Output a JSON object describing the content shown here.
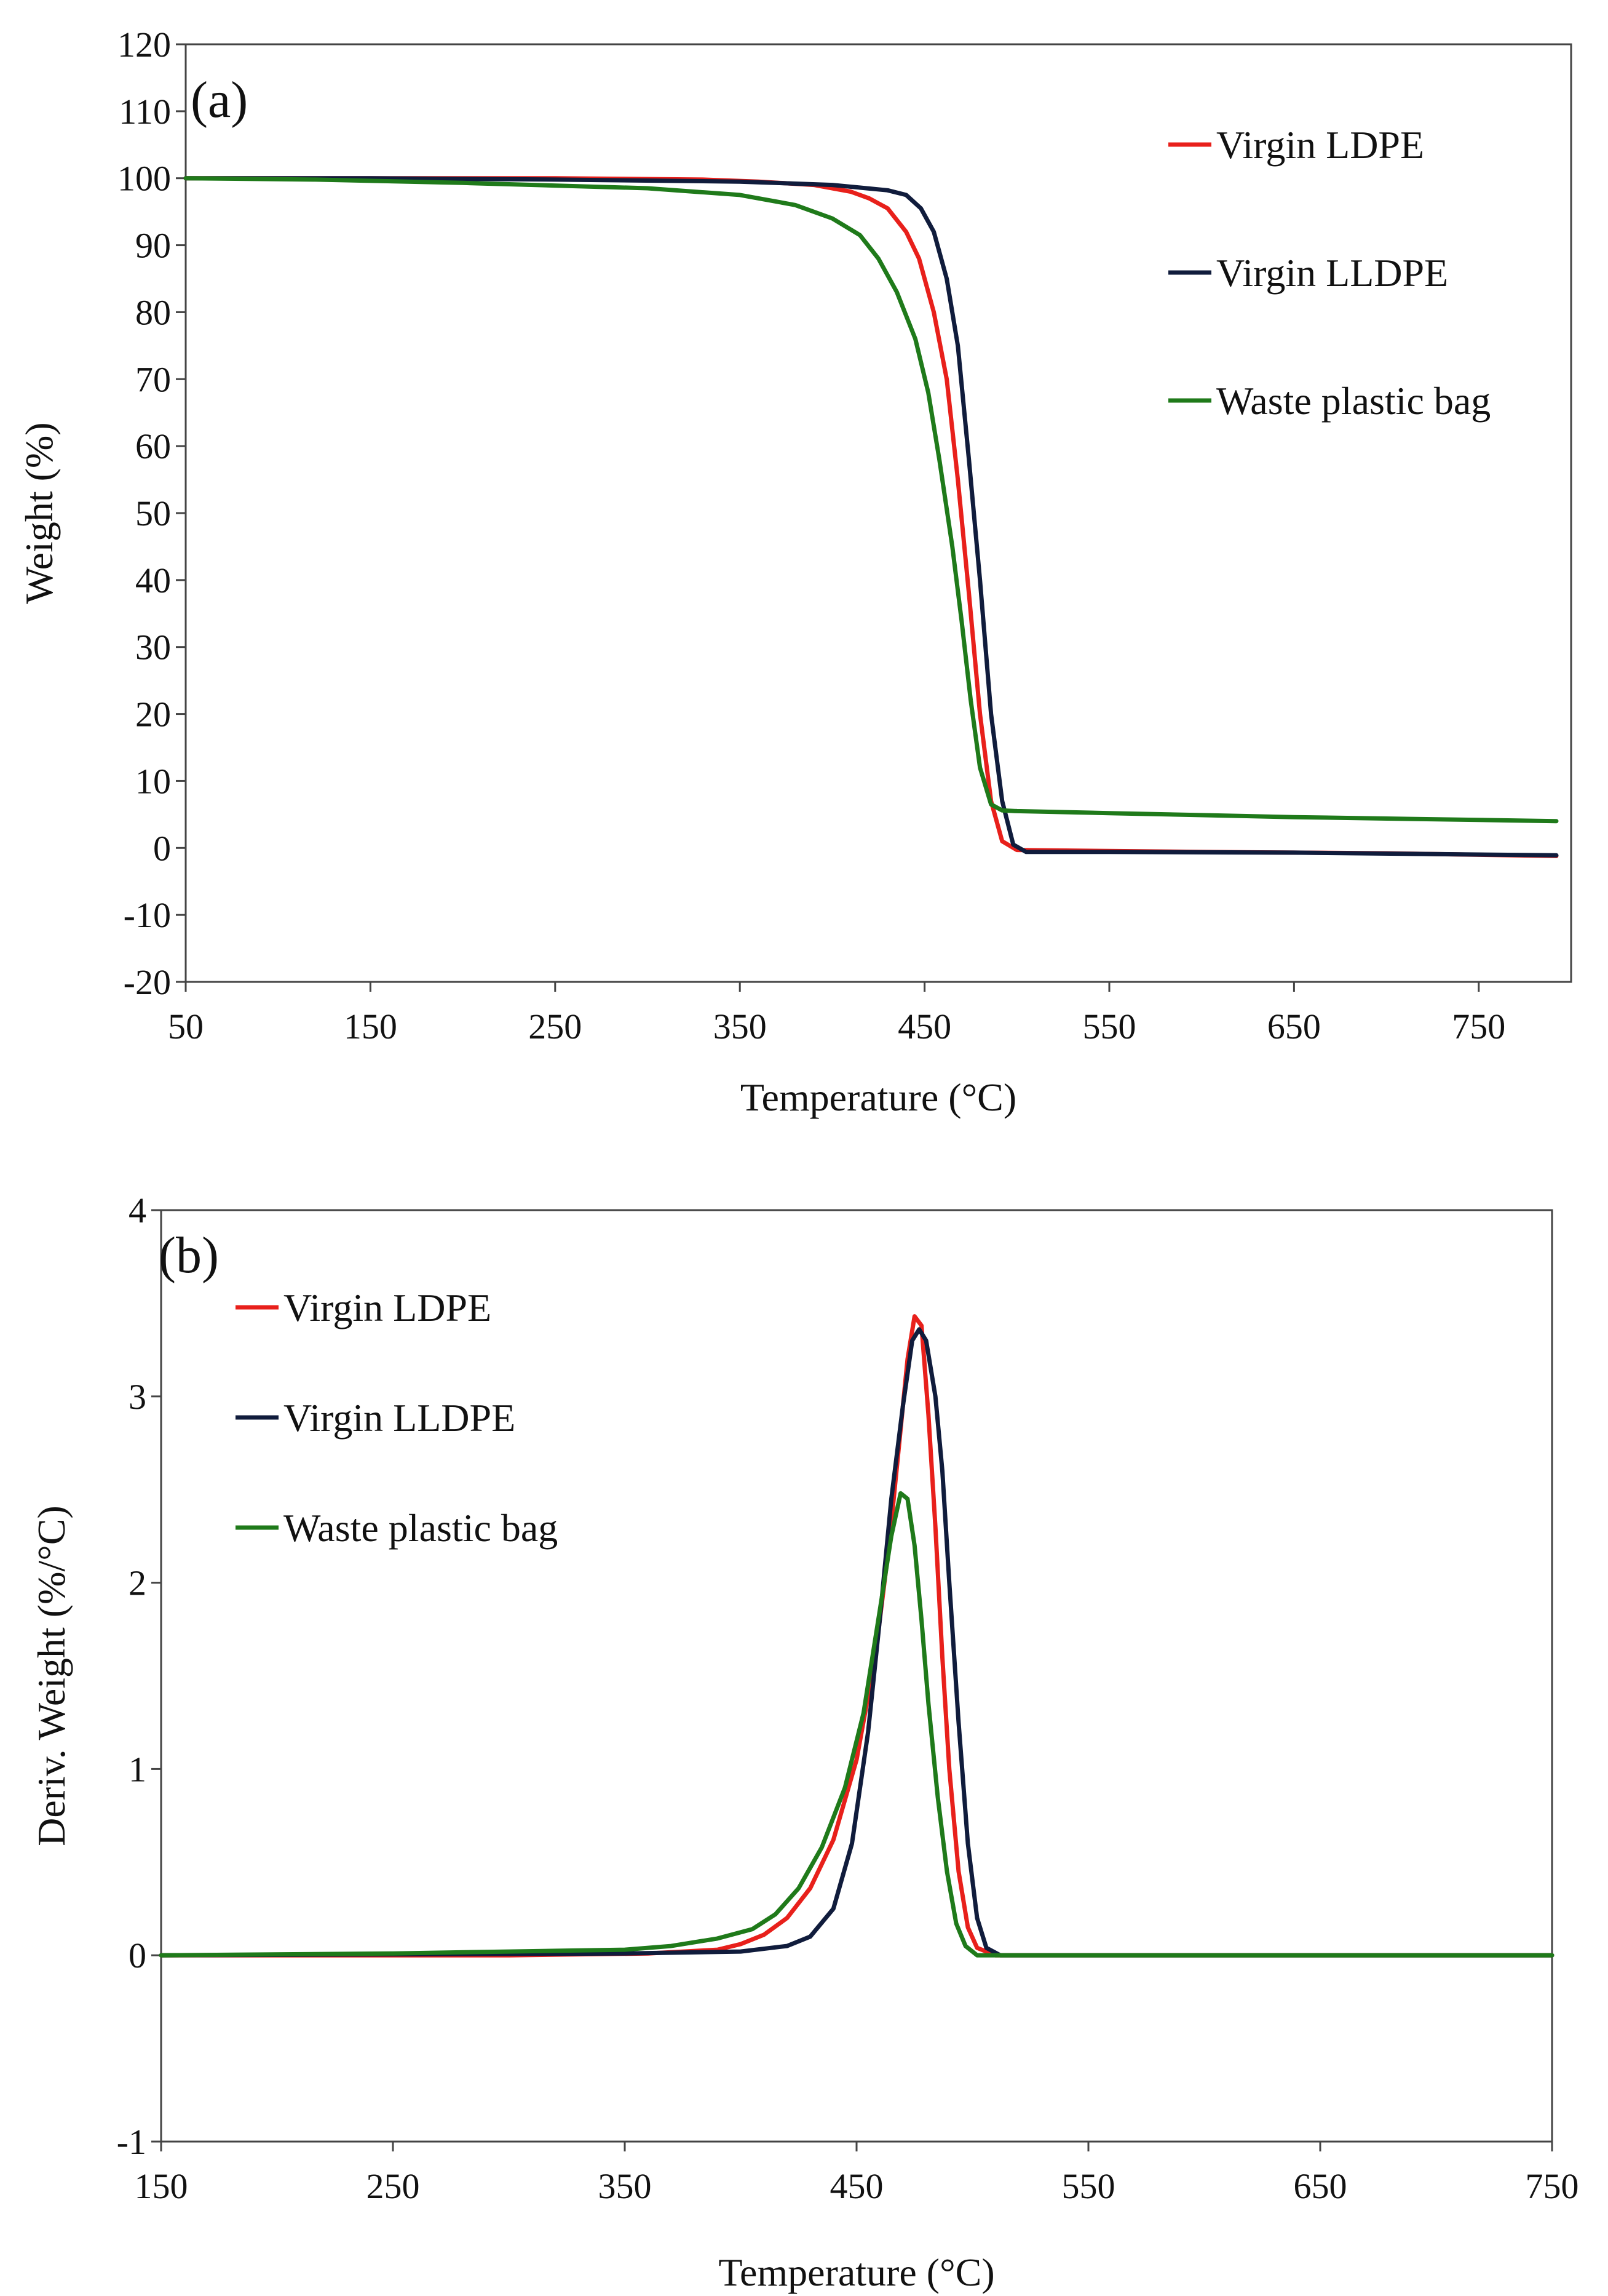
{
  "chart_data": [
    {
      "type": "line",
      "panel_label": "(a)",
      "xlabel": "Temperature (°C)",
      "ylabel": "Weight (%)",
      "xlim": [
        50,
        800
      ],
      "ylim": [
        -20,
        120
      ],
      "xticks": [
        50,
        150,
        250,
        350,
        450,
        550,
        650,
        750
      ],
      "yticks": [
        -20,
        -10,
        0,
        10,
        20,
        30,
        40,
        50,
        60,
        70,
        80,
        90,
        100,
        110,
        120
      ],
      "legend_position": "top-right",
      "series": [
        {
          "name": "Virgin LDPE",
          "color": "#e8201b",
          "x": [
            50,
            150,
            250,
            330,
            360,
            390,
            410,
            420,
            430,
            440,
            447,
            455,
            462,
            468,
            474,
            480,
            486,
            492,
            500,
            530,
            600,
            700,
            792
          ],
          "y": [
            100,
            100,
            100,
            99.8,
            99.5,
            99,
            98,
            97,
            95.5,
            92,
            88,
            80,
            70,
            55,
            38,
            20,
            7,
            1,
            -0.3,
            -0.4,
            -0.6,
            -0.8,
            -1.2
          ]
        },
        {
          "name": "Virgin LLDPE",
          "color": "#101c3c",
          "x": [
            50,
            150,
            250,
            350,
            400,
            430,
            440,
            448,
            455,
            462,
            468,
            474,
            480,
            486,
            492,
            498,
            505,
            550,
            650,
            792
          ],
          "y": [
            100,
            100,
            99.8,
            99.5,
            99,
            98.2,
            97.5,
            95.5,
            92,
            85,
            75,
            58,
            40,
            20,
            7,
            0.5,
            -0.6,
            -0.6,
            -0.7,
            -1.1
          ]
        },
        {
          "name": "Waste plastic bag",
          "color": "#1f7a1a",
          "x": [
            50,
            120,
            200,
            300,
            350,
            380,
            400,
            415,
            425,
            435,
            445,
            452,
            458,
            465,
            470,
            475,
            480,
            486,
            492,
            500,
            550,
            650,
            792
          ],
          "y": [
            100,
            99.8,
            99.3,
            98.5,
            97.5,
            96,
            94,
            91.5,
            88,
            83,
            76,
            68,
            58,
            45,
            34,
            22,
            12,
            6.5,
            5.6,
            5.5,
            5.2,
            4.6,
            4
          ]
        }
      ]
    },
    {
      "type": "line",
      "panel_label": "(b)",
      "xlabel": "Temperature (°C)",
      "ylabel": "Deriv. Weight (%/°C)",
      "xlim": [
        150,
        750
      ],
      "ylim": [
        -1,
        4
      ],
      "xticks": [
        150,
        250,
        350,
        450,
        550,
        650,
        750
      ],
      "yticks": [
        -1,
        0,
        1,
        2,
        3,
        4
      ],
      "legend_position": "top-left",
      "series": [
        {
          "name": "Virgin LDPE",
          "color": "#e8201b",
          "x": [
            150,
            300,
            360,
            390,
            400,
            410,
            420,
            430,
            440,
            450,
            458,
            464,
            468,
            472,
            475,
            478,
            481,
            484,
            487,
            490,
            494,
            498,
            502,
            510,
            600,
            750
          ],
          "y": [
            0,
            0,
            0.01,
            0.03,
            0.06,
            0.11,
            0.2,
            0.36,
            0.62,
            1.05,
            1.6,
            2.2,
            2.7,
            3.2,
            3.43,
            3.38,
            2.9,
            2.3,
            1.6,
            1.0,
            0.45,
            0.15,
            0.04,
            0,
            0,
            0
          ]
        },
        {
          "name": "Virgin LLDPE",
          "color": "#101c3c",
          "x": [
            150,
            350,
            400,
            420,
            430,
            440,
            448,
            455,
            460,
            465,
            470,
            474,
            477,
            480,
            484,
            487,
            490,
            494,
            498,
            502,
            506,
            512,
            600,
            750
          ],
          "y": [
            0,
            0.01,
            0.02,
            0.05,
            0.1,
            0.25,
            0.6,
            1.2,
            1.8,
            2.45,
            2.95,
            3.3,
            3.36,
            3.3,
            3.0,
            2.6,
            2.0,
            1.25,
            0.6,
            0.2,
            0.04,
            0,
            0,
            0
          ]
        },
        {
          "name": "Waste plastic bag",
          "color": "#1f7a1a",
          "x": [
            150,
            250,
            300,
            350,
            370,
            390,
            405,
            415,
            425,
            435,
            445,
            453,
            460,
            465,
            469,
            472,
            475,
            478,
            481,
            485,
            489,
            493,
            497,
            502,
            600,
            750
          ],
          "y": [
            0,
            0.01,
            0.02,
            0.03,
            0.05,
            0.09,
            0.14,
            0.22,
            0.36,
            0.58,
            0.9,
            1.3,
            1.85,
            2.25,
            2.48,
            2.45,
            2.2,
            1.8,
            1.35,
            0.85,
            0.45,
            0.17,
            0.05,
            0,
            0,
            0
          ]
        }
      ]
    }
  ]
}
